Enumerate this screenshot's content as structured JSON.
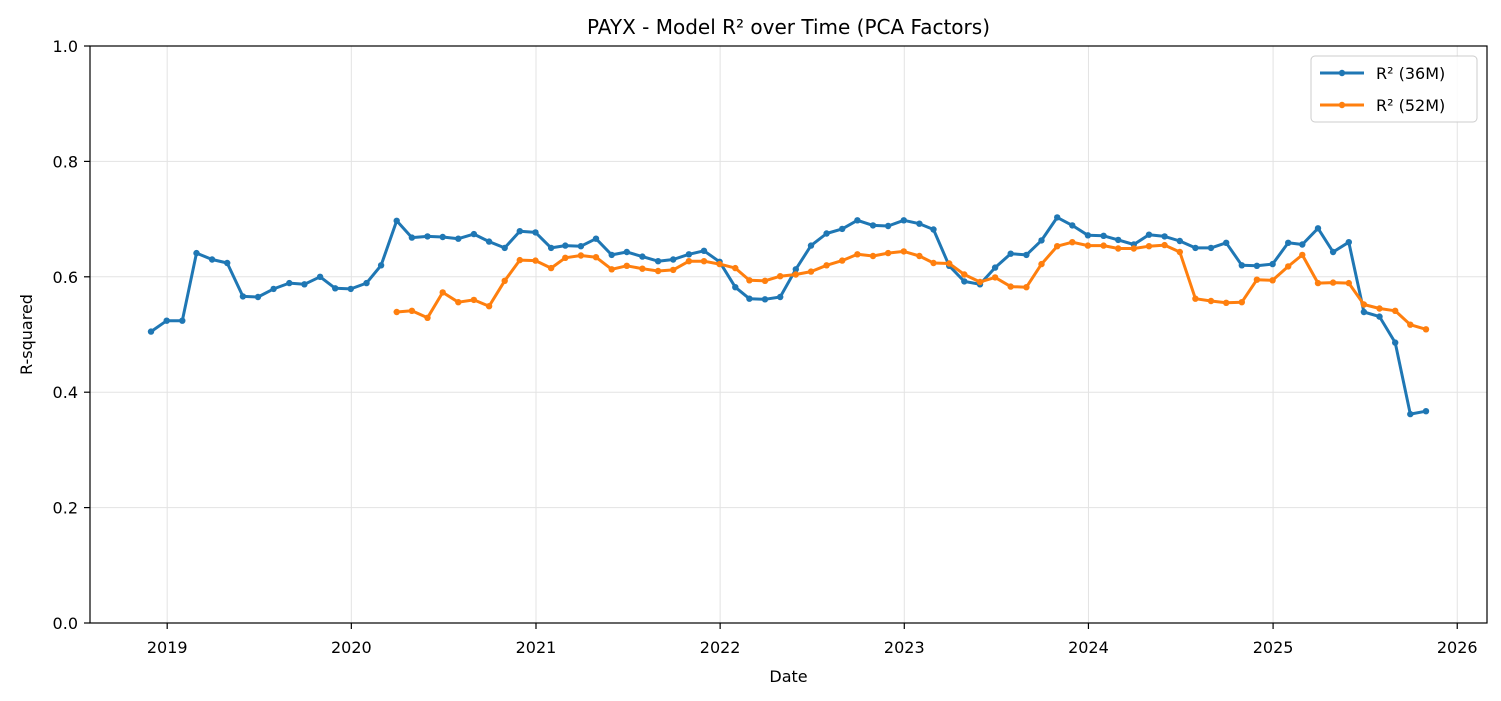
{
  "chart_data": {
    "type": "line",
    "title": "PAYX - Model R² over Time (PCA Factors)",
    "xlabel": "Date",
    "ylabel": "R-squared",
    "ylim": [
      0,
      1
    ],
    "xlim": [
      "2018-08-01",
      "2026-03-01"
    ],
    "x_ticks": [
      "2019",
      "2020",
      "2021",
      "2022",
      "2023",
      "2024",
      "2025",
      "2026"
    ],
    "y_ticks": [
      "0.0",
      "0.2",
      "0.4",
      "0.6",
      "0.8",
      "1.0"
    ],
    "grid": true,
    "legend_position": "top-right",
    "series": [
      {
        "name": "R² (36M)",
        "color": "#1f77b4",
        "points": [
          [
            "2018-11-30",
            0.505
          ],
          [
            "2018-12-31",
            0.524
          ],
          [
            "2019-01-31",
            0.524
          ],
          [
            "2019-02-28",
            0.641
          ],
          [
            "2019-03-31",
            0.63
          ],
          [
            "2019-04-30",
            0.624
          ],
          [
            "2019-05-31",
            0.566
          ],
          [
            "2019-06-30",
            0.565
          ],
          [
            "2019-07-31",
            0.579
          ],
          [
            "2019-08-31",
            0.589
          ],
          [
            "2019-09-30",
            0.587
          ],
          [
            "2019-10-31",
            0.6
          ],
          [
            "2019-11-30",
            0.58
          ],
          [
            "2019-12-31",
            0.579
          ],
          [
            "2020-01-31",
            0.589
          ],
          [
            "2020-02-29",
            0.62
          ],
          [
            "2020-03-31",
            0.697
          ],
          [
            "2020-04-30",
            0.668
          ],
          [
            "2020-05-31",
            0.67
          ],
          [
            "2020-06-30",
            0.669
          ],
          [
            "2020-07-31",
            0.666
          ],
          [
            "2020-08-31",
            0.674
          ],
          [
            "2020-09-30",
            0.661
          ],
          [
            "2020-10-31",
            0.65
          ],
          [
            "2020-11-30",
            0.679
          ],
          [
            "2020-12-31",
            0.677
          ],
          [
            "2021-01-31",
            0.65
          ],
          [
            "2021-02-28",
            0.654
          ],
          [
            "2021-03-31",
            0.653
          ],
          [
            "2021-04-30",
            0.666
          ],
          [
            "2021-05-31",
            0.638
          ],
          [
            "2021-06-30",
            0.643
          ],
          [
            "2021-07-31",
            0.635
          ],
          [
            "2021-08-31",
            0.627
          ],
          [
            "2021-09-30",
            0.63
          ],
          [
            "2021-10-31",
            0.639
          ],
          [
            "2021-11-30",
            0.645
          ],
          [
            "2021-12-31",
            0.626
          ],
          [
            "2022-01-31",
            0.582
          ],
          [
            "2022-02-28",
            0.562
          ],
          [
            "2022-03-31",
            0.561
          ],
          [
            "2022-04-30",
            0.565
          ],
          [
            "2022-05-31",
            0.613
          ],
          [
            "2022-06-30",
            0.654
          ],
          [
            "2022-07-31",
            0.675
          ],
          [
            "2022-08-31",
            0.683
          ],
          [
            "2022-09-30",
            0.698
          ],
          [
            "2022-10-31",
            0.689
          ],
          [
            "2022-11-30",
            0.688
          ],
          [
            "2022-12-31",
            0.698
          ],
          [
            "2023-01-31",
            0.692
          ],
          [
            "2023-02-28",
            0.682
          ],
          [
            "2023-03-31",
            0.619
          ],
          [
            "2023-04-30",
            0.592
          ],
          [
            "2023-05-31",
            0.587
          ],
          [
            "2023-06-30",
            0.616
          ],
          [
            "2023-07-31",
            0.64
          ],
          [
            "2023-08-31",
            0.638
          ],
          [
            "2023-09-30",
            0.663
          ],
          [
            "2023-10-31",
            0.703
          ],
          [
            "2023-11-30",
            0.689
          ],
          [
            "2023-12-31",
            0.672
          ],
          [
            "2024-01-31",
            0.671
          ],
          [
            "2024-02-29",
            0.664
          ],
          [
            "2024-03-31",
            0.656
          ],
          [
            "2024-04-30",
            0.673
          ],
          [
            "2024-05-31",
            0.67
          ],
          [
            "2024-06-30",
            0.662
          ],
          [
            "2024-07-31",
            0.65
          ],
          [
            "2024-08-31",
            0.65
          ],
          [
            "2024-09-30",
            0.659
          ],
          [
            "2024-10-31",
            0.62
          ],
          [
            "2024-11-30",
            0.619
          ],
          [
            "2024-12-31",
            0.622
          ],
          [
            "2025-01-31",
            0.659
          ],
          [
            "2025-02-28",
            0.656
          ],
          [
            "2025-03-31",
            0.684
          ],
          [
            "2025-04-30",
            0.643
          ],
          [
            "2025-05-31",
            0.66
          ],
          [
            "2025-06-30",
            0.539
          ],
          [
            "2025-07-31",
            0.531
          ],
          [
            "2025-08-31",
            0.486
          ],
          [
            "2025-09-30",
            0.362
          ],
          [
            "2025-10-31",
            0.367
          ]
        ]
      },
      {
        "name": "R² (52M)",
        "color": "#ff7f0e",
        "points": [
          [
            "2020-03-31",
            0.539
          ],
          [
            "2020-04-30",
            0.541
          ],
          [
            "2020-05-31",
            0.529
          ],
          [
            "2020-06-30",
            0.573
          ],
          [
            "2020-07-31",
            0.556
          ],
          [
            "2020-08-31",
            0.56
          ],
          [
            "2020-09-30",
            0.549
          ],
          [
            "2020-10-31",
            0.593
          ],
          [
            "2020-11-30",
            0.629
          ],
          [
            "2020-12-31",
            0.628
          ],
          [
            "2021-01-31",
            0.615
          ],
          [
            "2021-02-28",
            0.633
          ],
          [
            "2021-03-31",
            0.637
          ],
          [
            "2021-04-30",
            0.634
          ],
          [
            "2021-05-31",
            0.613
          ],
          [
            "2021-06-30",
            0.619
          ],
          [
            "2021-07-31",
            0.614
          ],
          [
            "2021-08-31",
            0.61
          ],
          [
            "2021-09-30",
            0.612
          ],
          [
            "2021-10-31",
            0.627
          ],
          [
            "2021-11-30",
            0.627
          ],
          [
            "2021-12-31",
            0.622
          ],
          [
            "2022-01-31",
            0.615
          ],
          [
            "2022-02-28",
            0.594
          ],
          [
            "2022-03-31",
            0.593
          ],
          [
            "2022-04-30",
            0.601
          ],
          [
            "2022-05-31",
            0.604
          ],
          [
            "2022-06-30",
            0.609
          ],
          [
            "2022-07-31",
            0.62
          ],
          [
            "2022-08-31",
            0.628
          ],
          [
            "2022-09-30",
            0.639
          ],
          [
            "2022-10-31",
            0.636
          ],
          [
            "2022-11-30",
            0.641
          ],
          [
            "2022-12-31",
            0.644
          ],
          [
            "2023-01-31",
            0.636
          ],
          [
            "2023-02-28",
            0.624
          ],
          [
            "2023-03-31",
            0.623
          ],
          [
            "2023-04-30",
            0.604
          ],
          [
            "2023-05-31",
            0.591
          ],
          [
            "2023-06-30",
            0.599
          ],
          [
            "2023-07-31",
            0.583
          ],
          [
            "2023-08-31",
            0.582
          ],
          [
            "2023-09-30",
            0.622
          ],
          [
            "2023-10-31",
            0.653
          ],
          [
            "2023-11-30",
            0.66
          ],
          [
            "2023-12-31",
            0.654
          ],
          [
            "2024-01-31",
            0.654
          ],
          [
            "2024-02-29",
            0.649
          ],
          [
            "2024-03-31",
            0.649
          ],
          [
            "2024-04-30",
            0.653
          ],
          [
            "2024-05-31",
            0.655
          ],
          [
            "2024-06-30",
            0.643
          ],
          [
            "2024-07-31",
            0.562
          ],
          [
            "2024-08-31",
            0.558
          ],
          [
            "2024-09-30",
            0.555
          ],
          [
            "2024-10-31",
            0.556
          ],
          [
            "2024-11-30",
            0.595
          ],
          [
            "2024-12-31",
            0.594
          ],
          [
            "2025-01-31",
            0.618
          ],
          [
            "2025-02-28",
            0.638
          ],
          [
            "2025-03-31",
            0.589
          ],
          [
            "2025-04-30",
            0.59
          ],
          [
            "2025-05-31",
            0.589
          ],
          [
            "2025-06-30",
            0.552
          ],
          [
            "2025-07-31",
            0.545
          ],
          [
            "2025-08-31",
            0.541
          ],
          [
            "2025-09-30",
            0.517
          ],
          [
            "2025-10-31",
            0.509
          ]
        ]
      }
    ]
  }
}
